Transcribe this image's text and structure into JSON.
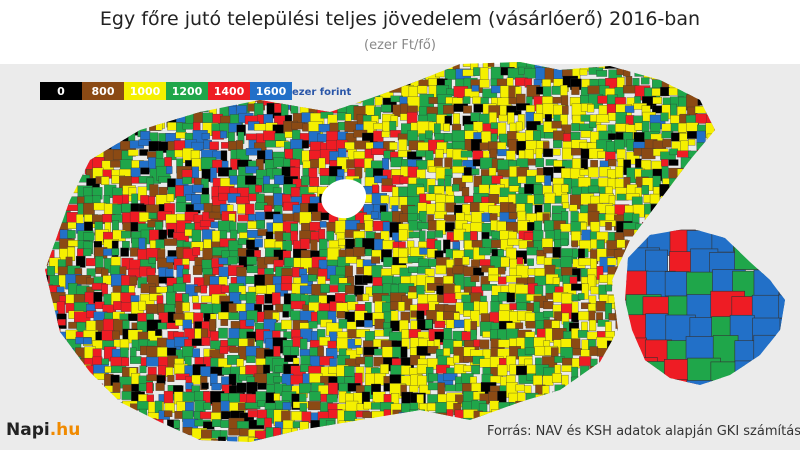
{
  "header": {
    "title": "Egy főre jutó települési teljes jövedelem (vásárlóerő) 2016-ban",
    "subtitle": "(ezer Ft/fő)"
  },
  "legend": {
    "items": [
      {
        "label": "0",
        "color": "#000000"
      },
      {
        "label": "800",
        "color": "#8b4a14"
      },
      {
        "label": "1000",
        "color": "#f5f000"
      },
      {
        "label": "1200",
        "color": "#1fa64a"
      },
      {
        "label": "1400",
        "color": "#ee1c24"
      },
      {
        "label": "1600",
        "color": "#2270c8"
      }
    ],
    "unit": "ezer forint"
  },
  "footer": {
    "logo": {
      "name": "Napi",
      "suffix": ".hu"
    },
    "source": "Forrás: NAV és KSH adatok alapján GKI számítás"
  }
}
